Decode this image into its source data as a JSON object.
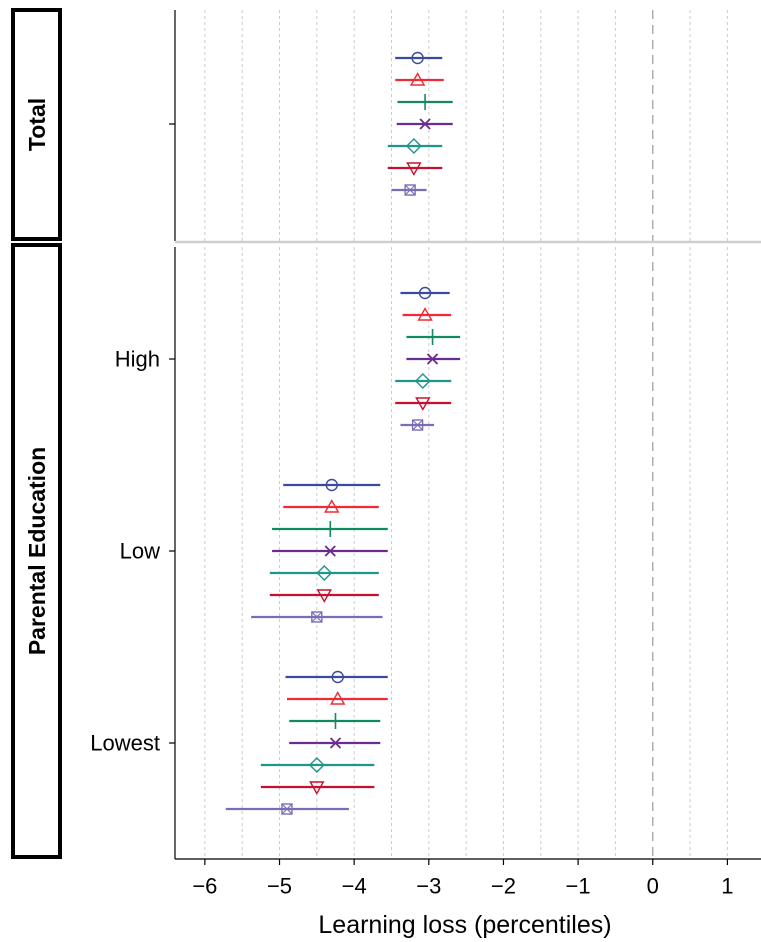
{
  "chart_data": {
    "type": "forest",
    "xlabel": "Learning loss (percentiles)",
    "xlim": [
      -6.4,
      1.45
    ],
    "x_ticks": [
      -6,
      -5,
      -4,
      -3,
      -2,
      -1,
      0,
      1
    ],
    "x_tick_labels": [
      "−6",
      "−5",
      "−4",
      "−3",
      "−2",
      "−1",
      "0",
      "1"
    ],
    "reference_line_x": 0,
    "grid": "vertical dotted every 0.5",
    "marker_series": [
      {
        "marker": "circle",
        "color": "#3b4a9c"
      },
      {
        "marker": "triangle-up",
        "color": "#ee2a35"
      },
      {
        "marker": "plus",
        "color": "#128a5e"
      },
      {
        "marker": "x",
        "color": "#6a2c8e"
      },
      {
        "marker": "diamond",
        "color": "#1f968b"
      },
      {
        "marker": "triangle-down",
        "color": "#c8102e"
      },
      {
        "marker": "square-x",
        "color": "#7b6db5"
      }
    ],
    "panels": [
      {
        "strip_label": "Total",
        "groups": [
          {
            "label": "",
            "estimates": [
              {
                "est": -3.15,
                "lo": -3.45,
                "hi": -2.82
              },
              {
                "est": -3.15,
                "lo": -3.45,
                "hi": -2.8
              },
              {
                "est": -3.05,
                "lo": -3.42,
                "hi": -2.68
              },
              {
                "est": -3.05,
                "lo": -3.43,
                "hi": -2.68
              },
              {
                "est": -3.2,
                "lo": -3.55,
                "hi": -2.82
              },
              {
                "est": -3.2,
                "lo": -3.55,
                "hi": -2.82
              },
              {
                "est": -3.25,
                "lo": -3.5,
                "hi": -3.03
              }
            ]
          }
        ]
      },
      {
        "strip_label": "Parental Education",
        "groups": [
          {
            "label": "High",
            "estimates": [
              {
                "est": -3.05,
                "lo": -3.38,
                "hi": -2.72
              },
              {
                "est": -3.05,
                "lo": -3.35,
                "hi": -2.7
              },
              {
                "est": -2.95,
                "lo": -3.3,
                "hi": -2.58
              },
              {
                "est": -2.95,
                "lo": -3.3,
                "hi": -2.58
              },
              {
                "est": -3.08,
                "lo": -3.45,
                "hi": -2.7
              },
              {
                "est": -3.08,
                "lo": -3.45,
                "hi": -2.7
              },
              {
                "est": -3.15,
                "lo": -3.38,
                "hi": -2.93
              }
            ]
          },
          {
            "label": "Low",
            "estimates": [
              {
                "est": -4.3,
                "lo": -4.95,
                "hi": -3.65
              },
              {
                "est": -4.3,
                "lo": -4.95,
                "hi": -3.67
              },
              {
                "est": -4.32,
                "lo": -5.1,
                "hi": -3.55
              },
              {
                "est": -4.32,
                "lo": -5.1,
                "hi": -3.55
              },
              {
                "est": -4.4,
                "lo": -5.13,
                "hi": -3.67
              },
              {
                "est": -4.4,
                "lo": -5.13,
                "hi": -3.67
              },
              {
                "est": -4.5,
                "lo": -5.38,
                "hi": -3.62
              }
            ]
          },
          {
            "label": "Lowest",
            "estimates": [
              {
                "est": -4.22,
                "lo": -4.92,
                "hi": -3.55
              },
              {
                "est": -4.22,
                "lo": -4.9,
                "hi": -3.55
              },
              {
                "est": -4.25,
                "lo": -4.87,
                "hi": -3.65
              },
              {
                "est": -4.25,
                "lo": -4.87,
                "hi": -3.65
              },
              {
                "est": -4.5,
                "lo": -5.25,
                "hi": -3.73
              },
              {
                "est": -4.5,
                "lo": -5.25,
                "hi": -3.73
              },
              {
                "est": -4.9,
                "lo": -5.72,
                "hi": -4.07
              }
            ]
          }
        ]
      }
    ]
  }
}
